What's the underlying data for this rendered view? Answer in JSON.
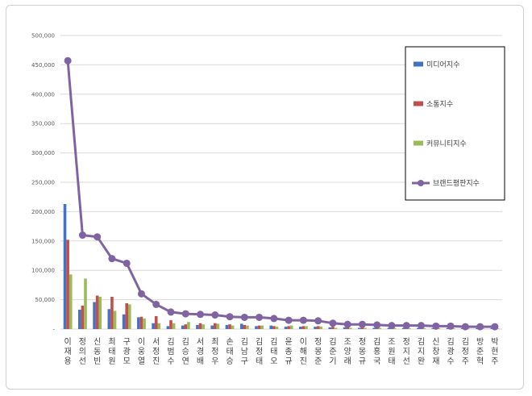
{
  "chart_data": {
    "type": "bar",
    "title": "",
    "xlabel": "",
    "ylabel": "",
    "ylim": [
      0,
      500000
    ],
    "yticks": [
      "500,000",
      "450,000",
      "400,000",
      "350,000",
      "300,000",
      "250,000",
      "200,000",
      "150,000",
      "100,000",
      "50,000",
      "-"
    ],
    "grid": true,
    "legend_position": "top-right",
    "categories": [
      "이재용",
      "정의선",
      "신동빈",
      "최태원",
      "구광모",
      "이웅열",
      "서정진",
      "김범수",
      "김승연",
      "서경배",
      "최정우",
      "손태승",
      "김남구",
      "김정태",
      "김태오",
      "윤종규",
      "이해진",
      "정몽준",
      "김준기",
      "조양래",
      "정몽규",
      "김홍국",
      "조원태",
      "정지선",
      "김지완",
      "신창재",
      "김광수",
      "김정주",
      "방준혁",
      "박현주"
    ],
    "series": [
      {
        "name": "미디어지수",
        "type": "bar",
        "color": "#4472c4",
        "values": [
          213000,
          33000,
          46000,
          34000,
          25000,
          20000,
          10000,
          5000,
          6000,
          7000,
          6000,
          7000,
          9000,
          5000,
          6000,
          4000,
          4000,
          4000,
          3000,
          3000,
          2000,
          2000,
          2000,
          2000,
          2000,
          1500,
          2000,
          1500,
          1500,
          1500
        ]
      },
      {
        "name": "소통지수",
        "type": "bar",
        "color": "#c0504d",
        "values": [
          152000,
          40000,
          57000,
          55000,
          44000,
          21000,
          22000,
          15000,
          8000,
          10000,
          10000,
          8000,
          7000,
          6000,
          5000,
          5000,
          5000,
          5000,
          4000,
          3000,
          3000,
          3000,
          3000,
          3000,
          3000,
          2000,
          2000,
          2000,
          1500,
          1500
        ]
      },
      {
        "name": "커뮤니티지수",
        "type": "bar",
        "color": "#9bbb59",
        "values": [
          93000,
          86000,
          55000,
          31000,
          42000,
          18000,
          10000,
          10000,
          12000,
          8000,
          9000,
          6000,
          6000,
          6000,
          4000,
          6000,
          5000,
          4000,
          2000,
          2000,
          2000,
          2000,
          2000,
          1500,
          1500,
          1500,
          1500,
          1000,
          1000,
          1000
        ]
      },
      {
        "name": "브랜드평판지수",
        "type": "line",
        "color": "#8064a2",
        "values": [
          457000,
          160000,
          157000,
          120000,
          112000,
          60000,
          42000,
          29000,
          26000,
          25000,
          24000,
          21000,
          20000,
          20000,
          18000,
          15000,
          15000,
          14000,
          10000,
          8000,
          8000,
          7000,
          6000,
          6000,
          6000,
          5000,
          5000,
          4000,
          4000,
          4000
        ]
      }
    ]
  }
}
